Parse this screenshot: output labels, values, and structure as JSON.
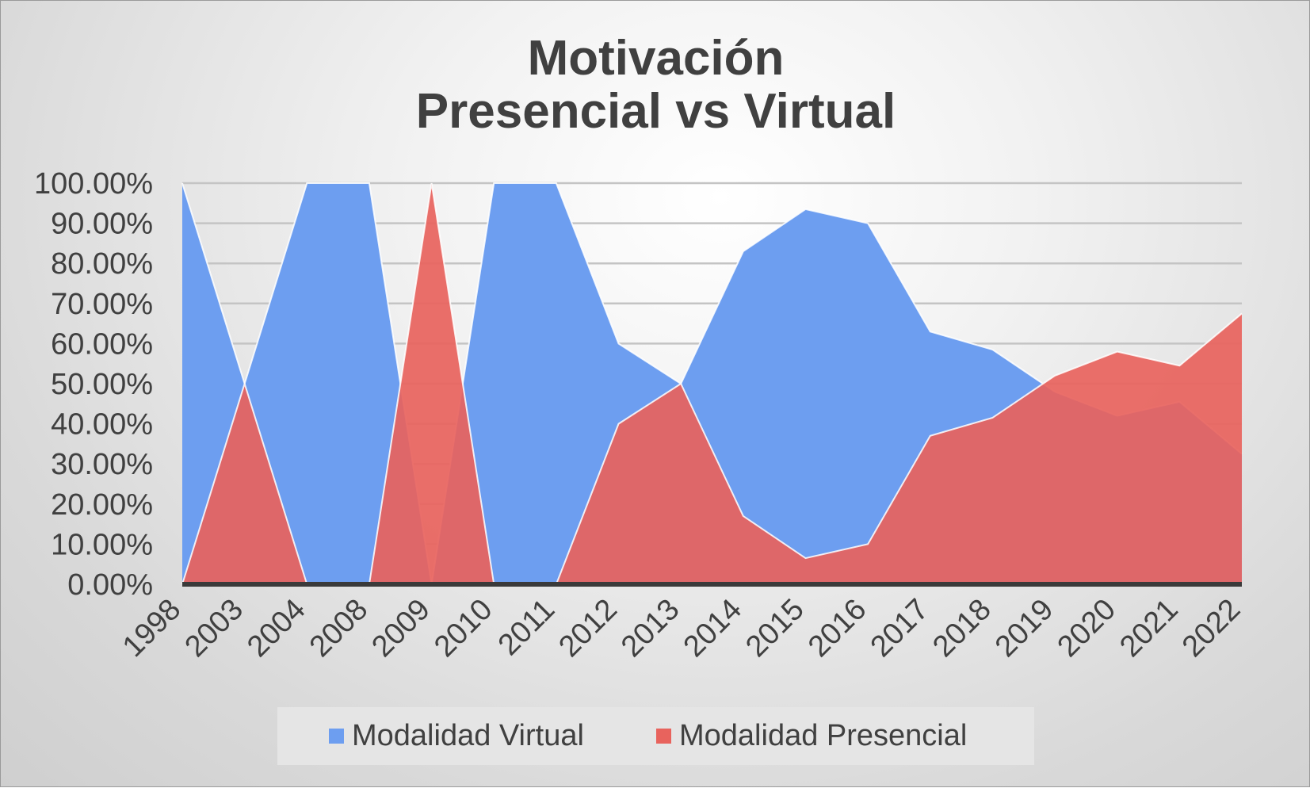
{
  "chart_data": {
    "type": "area",
    "title": [
      "Motivación",
      "Presencial vs Virtual"
    ],
    "categories": [
      "1998",
      "2003",
      "2004",
      "2008",
      "2009",
      "2010",
      "2011",
      "2012",
      "2013",
      "2014",
      "2015",
      "2016",
      "2017",
      "2018",
      "2019",
      "2020",
      "2021",
      "2022"
    ],
    "yticks": [
      "0.00%",
      "10.00%",
      "20.00%",
      "30.00%",
      "40.00%",
      "50.00%",
      "60.00%",
      "70.00%",
      "80.00%",
      "90.00%",
      "100.00%"
    ],
    "ylim": [
      0,
      100
    ],
    "grid": true,
    "legend_position": "bottom",
    "series": [
      {
        "name": "Modalidad Virtual",
        "color": "#6d9ef0",
        "values": [
          100,
          50,
          100,
          100,
          0,
          100,
          100,
          60,
          50,
          83,
          93.5,
          90,
          63,
          58.5,
          48,
          42,
          45.5,
          32.5
        ]
      },
      {
        "name": "Modalidad Presencial",
        "color": "#e8635d",
        "values": [
          0,
          50,
          0,
          0,
          100,
          0,
          0,
          40,
          50,
          17,
          6.5,
          10,
          37,
          41.5,
          52,
          58,
          54.5,
          67.5
        ]
      }
    ]
  }
}
